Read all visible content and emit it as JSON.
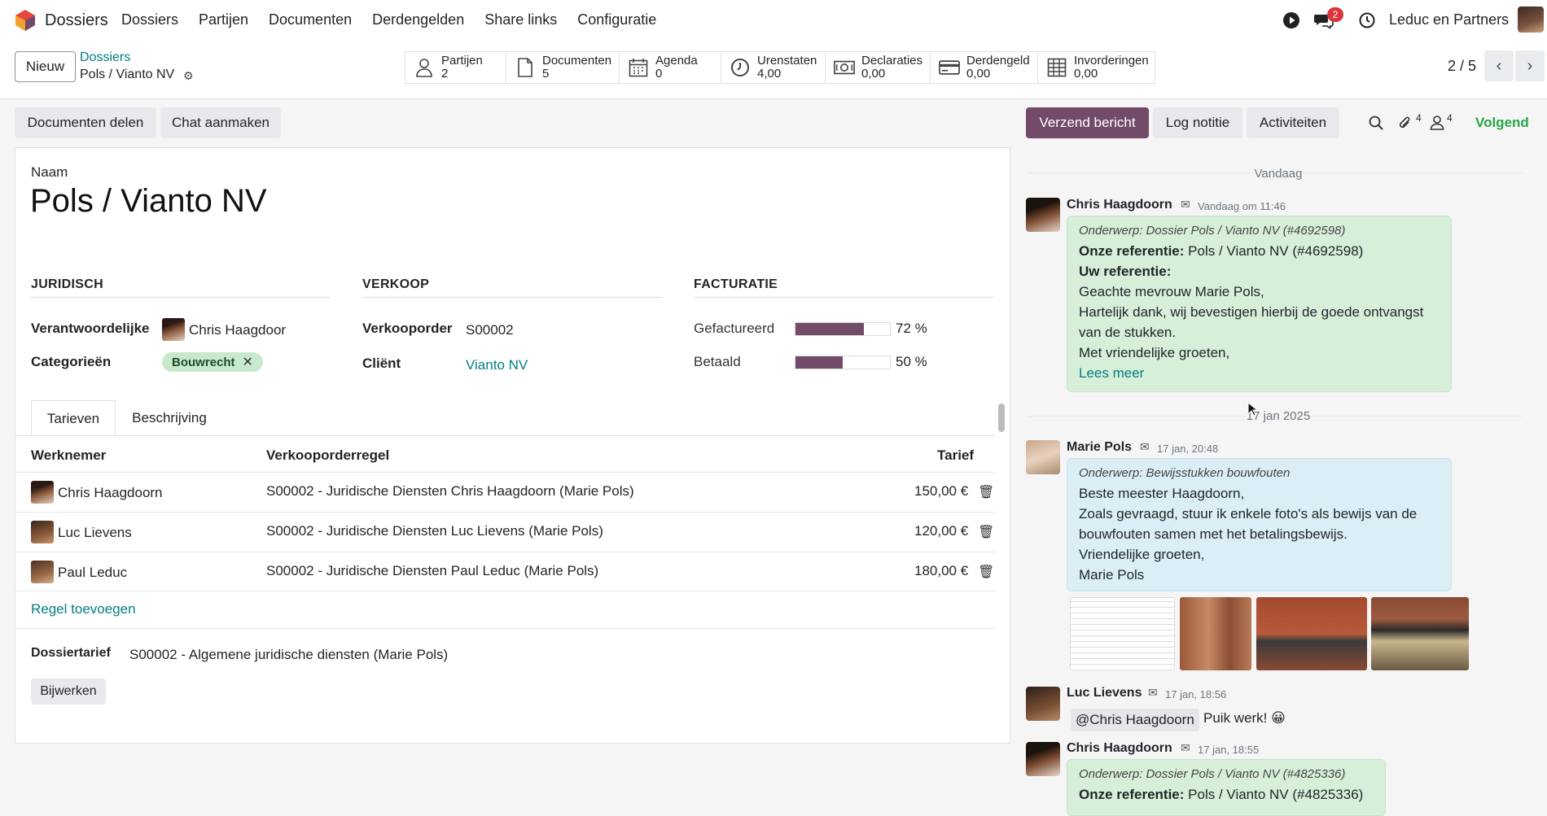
{
  "nav": {
    "app_name": "Dossiers",
    "menu": [
      "Dossiers",
      "Partijen",
      "Documenten",
      "Derdengelden",
      "Share links",
      "Configuratie"
    ],
    "chat_badge": "2",
    "company": "Leduc en Partners"
  },
  "control": {
    "new_label": "Nieuw",
    "breadcrumb_parent": "Dossiers",
    "breadcrumb_current": "Pols / Vianto NV",
    "smart_buttons": [
      {
        "label": "Partijen",
        "value": "2",
        "icon": "user-icon"
      },
      {
        "label": "Documenten",
        "value": "5",
        "icon": "document-icon"
      },
      {
        "label": "Agenda",
        "value": "0",
        "icon": "calendar-icon"
      },
      {
        "label": "Urenstaten",
        "value": "4,00",
        "icon": "clock-icon"
      },
      {
        "label": "Declaraties",
        "value": "0,00",
        "icon": "money-icon"
      },
      {
        "label": "Derdengeld",
        "value": "0,00",
        "icon": "credit-card-icon"
      },
      {
        "label": "Invorderingen",
        "value": "0,00",
        "icon": "table-icon"
      }
    ],
    "pager": "2 / 5"
  },
  "actions": {
    "share_docs": "Documenten delen",
    "create_chat": "Chat aanmaken",
    "send_message": "Verzend bericht",
    "log_note": "Log notitie",
    "activities": "Activiteiten",
    "attachments_count": "4",
    "followers_count": "4",
    "following": "Volgend"
  },
  "form": {
    "name_label": "Naam",
    "name": "Pols / Vianto NV",
    "sections": {
      "legal": "JURIDISCH",
      "sales": "VERKOOP",
      "billing": "FACTURATIE"
    },
    "responsible_label": "Verantwoordelijke",
    "responsible": "Chris Haagdoor",
    "categories_label": "Categorieën",
    "category_tag": "Bouwrecht",
    "sales_order_label": "Verkooporder",
    "sales_order": "S00002",
    "client_label": "Cliënt",
    "client": "Vianto NV",
    "invoiced_label": "Gefactureerd",
    "invoiced_pct": 72,
    "invoiced_text": "72 %",
    "paid_label": "Betaald",
    "paid_pct": 50,
    "paid_text": "50 %",
    "tabs": [
      "Tarieven",
      "Beschrijving"
    ],
    "columns": {
      "employee": "Werknemer",
      "line": "Verkooporderregel",
      "rate": "Tarief"
    },
    "rows": [
      {
        "employee": "Chris Haagdoorn",
        "line": "S00002 - Juridische Diensten Chris Haagdoorn (Marie Pols)",
        "rate": "150,00 €"
      },
      {
        "employee": "Luc Lievens",
        "line": "S00002 - Juridische Diensten Luc Lievens (Marie Pols)",
        "rate": "120,00 €"
      },
      {
        "employee": "Paul Leduc",
        "line": "S00002 - Juridische Diensten Paul Leduc (Marie Pols)",
        "rate": "180,00 €"
      }
    ],
    "add_line": "Regel toevoegen",
    "dossier_rate_label": "Dossiertarief",
    "dossier_rate": "S00002 - Algemene juridische diensten (Marie Pols)",
    "update_label": "Bijwerken"
  },
  "chatter": {
    "day_today": "Vandaag",
    "day_2": "17 jan 2025",
    "messages": [
      {
        "author": "Chris Haagdoorn",
        "time": "Vandaag om 11:46",
        "subject": "Onderwerp: Dossier Pols / Vianto NV (#4692598)",
        "ref_label": "Onze referentie:",
        "ref": "Pols / Vianto NV (#4692598)",
        "your_ref_label": "Uw referentie:",
        "lines": [
          "Geachte mevrouw Marie Pols,",
          "Hartelijk dank, wij bevestigen hierbij de goede ontvangst",
          "van de stukken.",
          "Met vriendelijke groeten,"
        ],
        "more": "Lees meer"
      },
      {
        "author": "Marie Pols",
        "time": "17 jan, 20:48",
        "subject": "Onderwerp: Bewijsstukken bouwfouten",
        "lines": [
          "Beste meester Haagdoorn,",
          "Zoals gevraagd, stuur ik enkele foto's als bewijs van de",
          "bouwfouten samen met het betalingsbewijs.",
          "Vriendelijke groeten,",
          "Marie Pols"
        ]
      },
      {
        "author": "Luc Lievens",
        "time": "17 jan, 18:56",
        "mention": "@Chris Haagdoorn",
        "text": "Puik werk! 😀"
      },
      {
        "author": "Chris Haagdoorn",
        "time": "17 jan, 18:55",
        "subject": "Onderwerp: Dossier Pols / Vianto NV (#4825336)",
        "ref_label": "Onze referentie:",
        "ref": "Pols / Vianto NV (#4825336)"
      }
    ]
  }
}
